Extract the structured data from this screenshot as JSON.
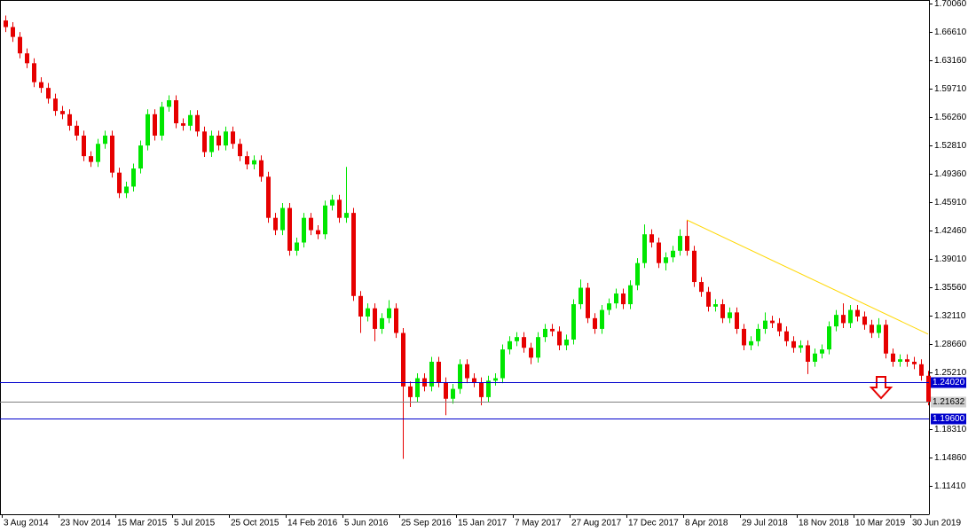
{
  "chart_data": {
    "type": "candlestick",
    "categories": [
      "3 Aug 2014",
      null,
      null,
      null,
      null,
      null,
      null,
      null,
      "23 Nov 2014",
      null,
      null,
      null,
      null,
      null,
      null,
      null,
      "15 Mar 2015",
      null,
      null,
      null,
      null,
      null,
      null,
      null,
      "5 Jul 2015",
      null,
      null,
      null,
      null,
      null,
      null,
      null,
      "25 Oct 2015",
      null,
      null,
      null,
      null,
      null,
      null,
      null,
      "14 Feb 2016",
      null,
      null,
      null,
      null,
      null,
      null,
      null,
      "5 Jun 2016",
      null,
      null,
      null,
      null,
      null,
      null,
      null,
      "25 Sep 2016",
      null,
      null,
      null,
      null,
      null,
      null,
      null,
      "15 Jan 2017",
      null,
      null,
      null,
      null,
      null,
      null,
      null,
      "7 May 2017",
      null,
      null,
      null,
      null,
      null,
      null,
      null,
      "27 Aug 2017",
      null,
      null,
      null,
      null,
      null,
      null,
      null,
      "17 Dec 2017",
      null,
      null,
      null,
      null,
      null,
      null,
      null,
      "8 Apr 2018",
      null,
      null,
      null,
      null,
      null,
      null,
      null,
      "29 Jul 2018",
      null,
      null,
      null,
      null,
      null,
      null,
      null,
      "18 Nov 2018",
      null,
      null,
      null,
      null,
      null,
      null,
      null,
      "10 Mar 2019",
      null,
      null,
      null,
      null,
      null,
      null,
      null,
      "30 Jun 2019",
      null,
      null
    ],
    "open": [
      1.68,
      1.672,
      1.66,
      1.64,
      1.628,
      1.605,
      1.598,
      1.585,
      1.57,
      1.566,
      1.552,
      1.54,
      1.515,
      1.508,
      1.53,
      1.54,
      1.495,
      1.47,
      1.478,
      1.5,
      1.528,
      1.566,
      1.54,
      1.575,
      1.583,
      1.555,
      1.552,
      1.565,
      1.545,
      1.52,
      1.54,
      1.528,
      1.545,
      1.53,
      1.515,
      1.505,
      1.51,
      1.49,
      1.44,
      1.425,
      1.452,
      1.4,
      1.41,
      1.44,
      1.425,
      1.42,
      1.455,
      1.462,
      1.44,
      1.446,
      1.345,
      1.32,
      1.33,
      1.305,
      1.318,
      1.33,
      1.3,
      1.235,
      1.222,
      1.245,
      1.235,
      1.265,
      1.24,
      1.22,
      1.232,
      1.262,
      1.245,
      1.24,
      1.222,
      1.242,
      1.245,
      1.28,
      1.29,
      1.295,
      1.282,
      1.27,
      1.295,
      1.305,
      1.302,
      1.285,
      1.292,
      1.335,
      1.355,
      1.318,
      1.305,
      1.328,
      1.336,
      1.348,
      1.335,
      1.358,
      1.385,
      1.42,
      1.41,
      1.385,
      1.392,
      1.4,
      1.418,
      1.4,
      1.362,
      1.35,
      1.332,
      1.335,
      1.318,
      1.325,
      1.305,
      1.285,
      1.29,
      1.305,
      1.315,
      1.312,
      1.302,
      1.29,
      1.282,
      1.285,
      1.265,
      1.275,
      1.28,
      1.308,
      1.322,
      1.312,
      1.328,
      1.32,
      1.31,
      1.3,
      1.31,
      1.275,
      1.265,
      1.268,
      1.265,
      1.262,
      1.248
    ],
    "high": [
      1.686,
      1.678,
      1.666,
      1.646,
      1.634,
      1.611,
      1.604,
      1.591,
      1.576,
      1.572,
      1.558,
      1.546,
      1.521,
      1.536,
      1.546,
      1.546,
      1.501,
      1.484,
      1.506,
      1.534,
      1.572,
      1.572,
      1.581,
      1.589,
      1.589,
      1.561,
      1.571,
      1.571,
      1.551,
      1.546,
      1.546,
      1.551,
      1.551,
      1.536,
      1.521,
      1.516,
      1.516,
      1.496,
      1.446,
      1.458,
      1.458,
      1.416,
      1.446,
      1.446,
      1.431,
      1.461,
      1.468,
      1.468,
      1.502,
      1.452,
      1.351,
      1.336,
      1.336,
      1.324,
      1.34,
      1.336,
      1.306,
      1.241,
      1.251,
      1.251,
      1.271,
      1.271,
      1.246,
      1.238,
      1.268,
      1.268,
      1.251,
      1.246,
      1.248,
      1.251,
      1.286,
      1.296,
      1.301,
      1.301,
      1.288,
      1.301,
      1.311,
      1.311,
      1.308,
      1.298,
      1.341,
      1.365,
      1.361,
      1.324,
      1.334,
      1.342,
      1.354,
      1.354,
      1.364,
      1.391,
      1.432,
      1.426,
      1.416,
      1.398,
      1.406,
      1.426,
      1.437,
      1.406,
      1.368,
      1.356,
      1.341,
      1.341,
      1.331,
      1.331,
      1.311,
      1.296,
      1.311,
      1.325,
      1.321,
      1.318,
      1.308,
      1.296,
      1.291,
      1.291,
      1.281,
      1.286,
      1.314,
      1.328,
      1.336,
      1.334,
      1.334,
      1.326,
      1.316,
      1.318,
      1.316,
      1.281,
      1.274,
      1.274,
      1.271,
      1.268,
      1.254
    ],
    "low": [
      1.666,
      1.654,
      1.634,
      1.622,
      1.599,
      1.592,
      1.579,
      1.564,
      1.56,
      1.546,
      1.534,
      1.509,
      1.502,
      1.502,
      1.524,
      1.489,
      1.464,
      1.464,
      1.472,
      1.494,
      1.522,
      1.534,
      1.534,
      1.569,
      1.549,
      1.546,
      1.546,
      1.539,
      1.514,
      1.514,
      1.522,
      1.522,
      1.524,
      1.509,
      1.499,
      1.499,
      1.484,
      1.434,
      1.419,
      1.419,
      1.394,
      1.394,
      1.404,
      1.419,
      1.414,
      1.414,
      1.449,
      1.434,
      1.434,
      1.339,
      1.3,
      1.314,
      1.29,
      1.299,
      1.312,
      1.294,
      1.147,
      1.21,
      1.216,
      1.229,
      1.229,
      1.234,
      1.2,
      1.214,
      1.226,
      1.239,
      1.234,
      1.212,
      1.216,
      1.236,
      1.239,
      1.274,
      1.284,
      1.276,
      1.262,
      1.264,
      1.289,
      1.296,
      1.279,
      1.279,
      1.286,
      1.329,
      1.312,
      1.299,
      1.299,
      1.322,
      1.33,
      1.329,
      1.329,
      1.352,
      1.379,
      1.404,
      1.379,
      1.376,
      1.386,
      1.394,
      1.394,
      1.356,
      1.344,
      1.326,
      1.326,
      1.312,
      1.312,
      1.299,
      1.279,
      1.279,
      1.284,
      1.299,
      1.306,
      1.296,
      1.284,
      1.276,
      1.276,
      1.25,
      1.259,
      1.269,
      1.274,
      1.302,
      1.306,
      1.306,
      1.314,
      1.304,
      1.294,
      1.294,
      1.269,
      1.259,
      1.259,
      1.259,
      1.256,
      1.242,
      1.212
    ],
    "close": [
      1.672,
      1.66,
      1.64,
      1.628,
      1.605,
      1.598,
      1.585,
      1.57,
      1.566,
      1.552,
      1.54,
      1.515,
      1.508,
      1.53,
      1.54,
      1.495,
      1.47,
      1.478,
      1.5,
      1.528,
      1.566,
      1.54,
      1.575,
      1.583,
      1.555,
      1.552,
      1.565,
      1.545,
      1.52,
      1.54,
      1.528,
      1.545,
      1.53,
      1.515,
      1.505,
      1.51,
      1.49,
      1.44,
      1.425,
      1.452,
      1.4,
      1.41,
      1.44,
      1.425,
      1.42,
      1.455,
      1.462,
      1.44,
      1.446,
      1.345,
      1.32,
      1.33,
      1.305,
      1.318,
      1.33,
      1.3,
      1.235,
      1.222,
      1.245,
      1.235,
      1.265,
      1.24,
      1.22,
      1.232,
      1.262,
      1.245,
      1.24,
      1.222,
      1.242,
      1.245,
      1.28,
      1.29,
      1.295,
      1.282,
      1.27,
      1.295,
      1.305,
      1.302,
      1.285,
      1.292,
      1.335,
      1.355,
      1.318,
      1.305,
      1.328,
      1.336,
      1.348,
      1.335,
      1.358,
      1.385,
      1.42,
      1.41,
      1.385,
      1.392,
      1.4,
      1.418,
      1.4,
      1.362,
      1.35,
      1.332,
      1.335,
      1.318,
      1.325,
      1.305,
      1.285,
      1.29,
      1.305,
      1.315,
      1.312,
      1.302,
      1.29,
      1.282,
      1.285,
      1.265,
      1.275,
      1.28,
      1.308,
      1.322,
      1.312,
      1.328,
      1.32,
      1.31,
      1.3,
      1.31,
      1.275,
      1.265,
      1.268,
      1.265,
      1.262,
      1.248,
      1.2163
    ],
    "up_color": "#00e600",
    "down_color": "#e60000",
    "ylim": [
      1.0774,
      1.7049
    ],
    "yticks": [
      {
        "value": 1.7006,
        "label": "1.70060"
      },
      {
        "value": 1.6661,
        "label": "1.66610"
      },
      {
        "value": 1.6316,
        "label": "1.63160"
      },
      {
        "value": 1.5971,
        "label": "1.59710"
      },
      {
        "value": 1.5626,
        "label": "1.56260"
      },
      {
        "value": 1.5281,
        "label": "1.52810"
      },
      {
        "value": 1.4936,
        "label": "1.49360"
      },
      {
        "value": 1.4591,
        "label": "1.45910"
      },
      {
        "value": 1.4246,
        "label": "1.42460"
      },
      {
        "value": 1.3901,
        "label": "1.39010"
      },
      {
        "value": 1.3556,
        "label": "1.35560"
      },
      {
        "value": 1.3211,
        "label": "1.32110"
      },
      {
        "value": 1.2866,
        "label": "1.28660"
      },
      {
        "value": 1.2521,
        "label": "1.25210"
      },
      {
        "value": 1.1831,
        "label": "1.18310"
      },
      {
        "value": 1.1486,
        "label": "1.14860"
      },
      {
        "value": 1.1141,
        "label": "1.11410"
      }
    ],
    "levels": [
      {
        "value": 1.2402,
        "label": "1.24020",
        "color": "#0000cc"
      },
      {
        "value": 1.2163,
        "label": "1.21632",
        "color": "#808080"
      },
      {
        "value": 1.196,
        "label": "1.19600",
        "color": "#0000cc"
      }
    ],
    "trendline": {
      "from": [
        96,
        1.4375
      ],
      "to": [
        130,
        1.2986
      ],
      "color": "#ffd700"
    }
  }
}
